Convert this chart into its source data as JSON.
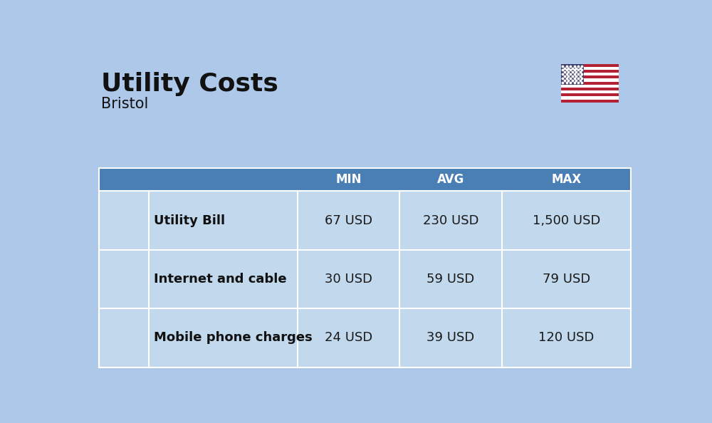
{
  "title": "Utility Costs",
  "subtitle": "Bristol",
  "background_color": "#adc8e8",
  "header_color": "#4a7fb5",
  "header_text_color": "#ffffff",
  "row_bg_same": "#c2d8ed",
  "text_color": "#1a1a1a",
  "bold_text_color": "#111111",
  "rows": [
    {
      "label": "Utility Bill",
      "min": "67 USD",
      "avg": "230 USD",
      "max": "1,500 USD"
    },
    {
      "label": "Internet and cable",
      "min": "30 USD",
      "avg": "59 USD",
      "max": "79 USD"
    },
    {
      "label": "Mobile phone charges",
      "min": "24 USD",
      "avg": "39 USD",
      "max": "120 USD"
    }
  ],
  "title_fontsize": 26,
  "subtitle_fontsize": 15,
  "header_fontsize": 12,
  "cell_fontsize": 13,
  "label_fontsize": 13
}
